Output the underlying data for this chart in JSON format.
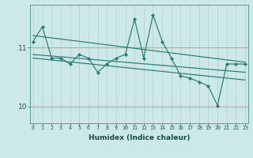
{
  "xlabel": "Humidex (Indice chaleur)",
  "ylabel": "",
  "bg_color": "#cce8e8",
  "line_color": "#2a7a70",
  "grid_color_v": "#b8d8d8",
  "grid_color_h": "#c8a0a0",
  "x_data": [
    0,
    1,
    2,
    3,
    4,
    5,
    6,
    7,
    8,
    9,
    10,
    11,
    12,
    13,
    14,
    15,
    16,
    17,
    18,
    19,
    20,
    21,
    22,
    23
  ],
  "y_main": [
    11.1,
    11.35,
    10.82,
    10.82,
    10.72,
    10.88,
    10.82,
    10.58,
    10.72,
    10.82,
    10.88,
    11.48,
    10.82,
    11.55,
    11.1,
    10.82,
    10.52,
    10.48,
    10.42,
    10.35,
    10.02,
    10.72,
    10.72,
    10.72
  ],
  "trend1_start": 11.2,
  "trend1_end": 10.75,
  "trend2_start": 10.88,
  "trend2_end": 10.58,
  "trend3_start": 10.82,
  "trend3_end": 10.45,
  "ylim": [
    9.72,
    11.72
  ],
  "yticks": [
    10,
    11
  ],
  "xlim": [
    -0.3,
    23.3
  ]
}
